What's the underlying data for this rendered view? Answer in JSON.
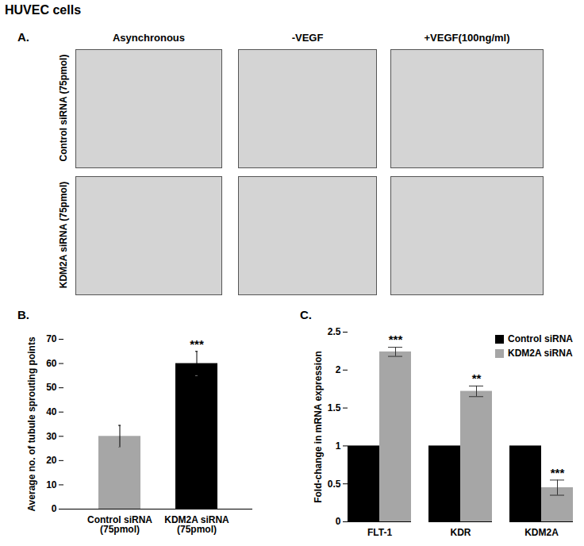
{
  "figure": {
    "title": "HUVEC cells",
    "panel_labels": [
      "A.",
      "B.",
      "C."
    ],
    "images": {
      "columns": [
        "Asynchronous",
        "-VEGF",
        "+VEGF(100ng/ml)"
      ],
      "rows": [
        "Control siRNA (75pmol)",
        "KDM2A siRNA (75pmol)"
      ]
    }
  },
  "chart_data": [
    {
      "type": "bar",
      "categories": [
        "Control siRNA\n(75pmol)",
        "KDM2A siRNA\n(75pmol)"
      ],
      "values": [
        30,
        60
      ],
      "errors": [
        4.5,
        5
      ],
      "significance": [
        null,
        "***"
      ],
      "colors": [
        "#a6a6a6",
        "#000000"
      ],
      "y_label": "Average no. of tubule sprouting points",
      "ylim": [
        0,
        70
      ],
      "yticks": [
        0,
        10,
        20,
        30,
        40,
        50,
        60,
        70
      ]
    },
    {
      "type": "bar",
      "categories": [
        "FLT-1",
        "KDR",
        "KDM2A"
      ],
      "series": [
        {
          "name": "Control siRNA",
          "color": "#000000",
          "values": [
            1,
            1,
            1
          ]
        },
        {
          "name": "KDM2A siRNA",
          "color": "#a6a6a6",
          "values": [
            2.24,
            1.72,
            0.45
          ],
          "errors": [
            0.06,
            0.07,
            0.1
          ],
          "significance": [
            "***",
            "**",
            "***"
          ]
        }
      ],
      "y_label": "Fold-change in mRNA expression",
      "ylim": [
        0,
        2.5
      ],
      "yticks": [
        0,
        0.5,
        1,
        1.5,
        2,
        2.5
      ],
      "legend": "top-right"
    }
  ]
}
